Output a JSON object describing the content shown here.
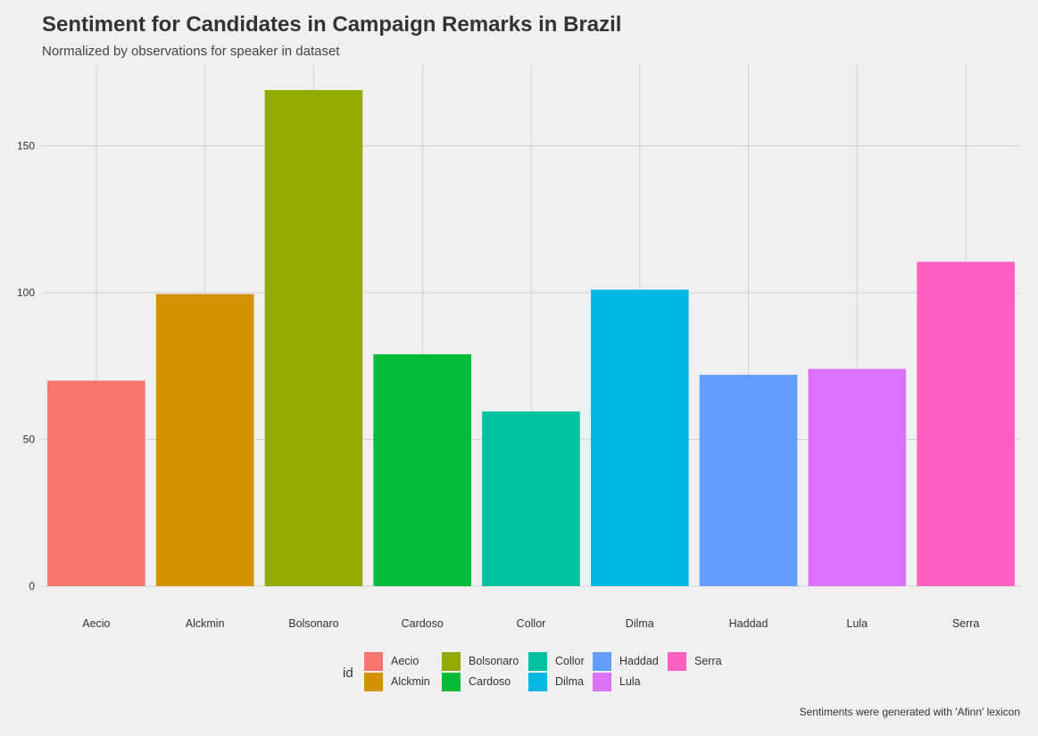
{
  "chart_data": {
    "type": "bar",
    "title": "Sentiment for Candidates in Campaign Remarks in Brazil",
    "subtitle": "Normalized by observations for speaker in dataset",
    "caption": "Sentiments were generated with 'Afinn' lexicon",
    "categories": [
      "Aecio",
      "Alckmin",
      "Bolsonaro",
      "Cardoso",
      "Collor",
      "Dilma",
      "Haddad",
      "Lula",
      "Serra"
    ],
    "values": [
      70,
      99.5,
      169,
      79,
      59.5,
      101,
      72,
      74,
      110.5
    ],
    "colors": [
      "#F8766D",
      "#D39200",
      "#93AA00",
      "#00BA38",
      "#00C19F",
      "#00B9E3",
      "#619CFF",
      "#DB72FB",
      "#FF61C3"
    ],
    "ylim": [
      0,
      175
    ],
    "yticks": [
      0,
      50,
      100,
      150
    ],
    "ytick_labels": [
      "0",
      "50",
      "100",
      "150"
    ],
    "xlabel": "",
    "ylabel": "",
    "grid": true,
    "legend": {
      "title": "id",
      "placement": "bottom",
      "entries": [
        "Aecio",
        "Alckmin",
        "Bolsonaro",
        "Cardoso",
        "Collor",
        "Dilma",
        "Haddad",
        "Lula",
        "Serra"
      ]
    }
  }
}
